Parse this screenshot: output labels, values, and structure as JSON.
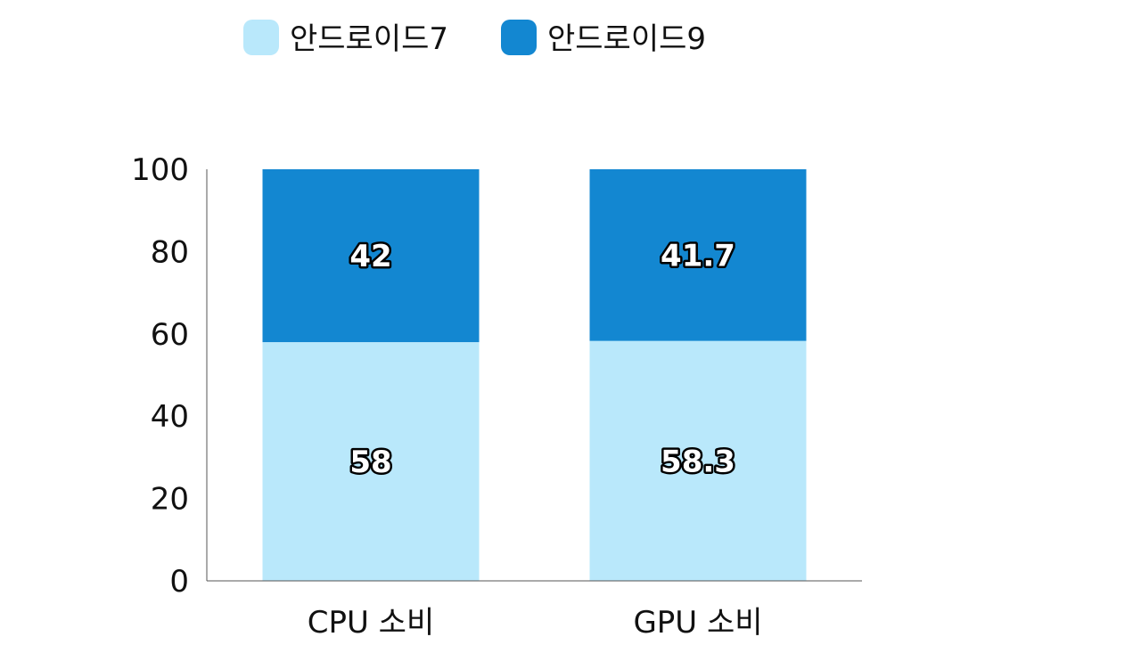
{
  "chart_data": {
    "type": "bar",
    "stacked": true,
    "categories": [
      "CPU 소비",
      "GPU 소비"
    ],
    "series": [
      {
        "name": "안드로이드7",
        "values": [
          58,
          58.3
        ],
        "color": "#b9e8fb"
      },
      {
        "name": "안드로이드9",
        "values": [
          42,
          41.7
        ],
        "color": "#1387d1"
      }
    ],
    "title": "",
    "xlabel": "",
    "ylabel": "",
    "ylim": [
      0,
      100
    ],
    "yticks": [
      0,
      20,
      40,
      60,
      80,
      100
    ],
    "grid": false,
    "legend": "top-center",
    "data_labels": true
  }
}
